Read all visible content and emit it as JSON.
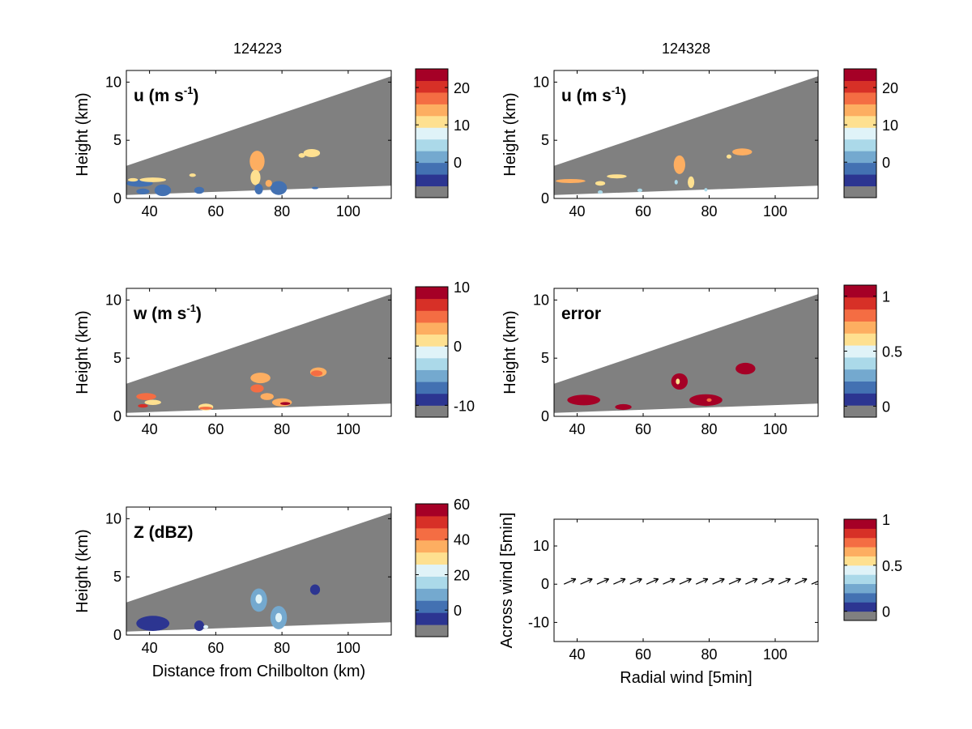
{
  "figure": {
    "col_titles": [
      "124223",
      "124328"
    ]
  },
  "palette": [
    "#808080",
    "#2c3591",
    "#4371b2",
    "#74a9cf",
    "#abd9e9",
    "#e0f3f8",
    "#fee090",
    "#fdae61",
    "#f46d43",
    "#d73027",
    "#a50026"
  ],
  "cross_section_envelope": {
    "x": [
      33,
      113
    ],
    "top_km": [
      2.8,
      10.5
    ],
    "bottom_km": [
      0.3,
      1.1
    ]
  },
  "chart_data": [
    {
      "type": "heatmap",
      "id": "u_124223",
      "title": "124223",
      "label": "u (m s",
      "label_sup": "-1",
      "label_tail": ")",
      "ylabel": "Height (km)",
      "xlabel": "",
      "xlim": [
        33,
        113
      ],
      "ylim": [
        0,
        11
      ],
      "xticks": [
        40,
        60,
        80,
        100
      ],
      "yticks": [
        0,
        5,
        10
      ],
      "colorbar": {
        "ticks": [
          0,
          10,
          20
        ],
        "range": [
          -9.5,
          25
        ]
      },
      "echoes": [
        {
          "x": 37,
          "y": 1.3,
          "w": 8,
          "h": 0.6,
          "v": -5
        },
        {
          "x": 44,
          "y": 0.7,
          "w": 5,
          "h": 1.0,
          "v": -5
        },
        {
          "x": 38,
          "y": 0.6,
          "w": 4,
          "h": 0.5,
          "v": -5
        },
        {
          "x": 41,
          "y": 1.6,
          "w": 8,
          "h": 0.4,
          "v": 9
        },
        {
          "x": 35,
          "y": 1.6,
          "w": 3,
          "h": 0.3,
          "v": 10
        },
        {
          "x": 55,
          "y": 0.7,
          "w": 3,
          "h": 0.6,
          "v": -5
        },
        {
          "x": 53,
          "y": 2.0,
          "w": 2,
          "h": 0.3,
          "v": 9
        },
        {
          "x": 72.5,
          "y": 3.2,
          "w": 4.5,
          "h": 1.8,
          "v": 12
        },
        {
          "x": 72,
          "y": 1.8,
          "w": 3,
          "h": 1.3,
          "v": 11
        },
        {
          "x": 73,
          "y": 0.8,
          "w": 2.5,
          "h": 0.9,
          "v": -5
        },
        {
          "x": 79,
          "y": 0.9,
          "w": 5,
          "h": 1.2,
          "v": -5
        },
        {
          "x": 76,
          "y": 1.3,
          "w": 2,
          "h": 0.6,
          "v": 12
        },
        {
          "x": 89,
          "y": 3.9,
          "w": 5,
          "h": 0.7,
          "v": 10
        },
        {
          "x": 86,
          "y": 3.7,
          "w": 2,
          "h": 0.4,
          "v": 11
        },
        {
          "x": 90,
          "y": 0.9,
          "w": 2,
          "h": 0.2,
          "v": -5
        }
      ]
    },
    {
      "type": "heatmap",
      "id": "u_124328",
      "title": "124328",
      "label": "u (m s",
      "label_sup": "-1",
      "label_tail": ")",
      "ylabel": "Height (km)",
      "xlabel": "",
      "xlim": [
        33,
        113
      ],
      "ylim": [
        0,
        11
      ],
      "xticks": [
        40,
        60,
        80,
        100
      ],
      "yticks": [
        0,
        5,
        10
      ],
      "colorbar": {
        "ticks": [
          0,
          10,
          20
        ],
        "range": [
          -9.5,
          25
        ]
      },
      "echoes": [
        {
          "x": 38,
          "y": 1.5,
          "w": 9,
          "h": 0.35,
          "v": 12
        },
        {
          "x": 47,
          "y": 1.3,
          "w": 3,
          "h": 0.4,
          "v": 11
        },
        {
          "x": 52,
          "y": 1.9,
          "w": 6,
          "h": 0.35,
          "v": 11
        },
        {
          "x": 47,
          "y": 0.55,
          "w": 1.5,
          "h": 0.3,
          "v": 4
        },
        {
          "x": 71,
          "y": 2.9,
          "w": 3.5,
          "h": 1.6,
          "v": 12
        },
        {
          "x": 70,
          "y": 1.4,
          "w": 1,
          "h": 0.4,
          "v": 3
        },
        {
          "x": 74.5,
          "y": 1.4,
          "w": 2,
          "h": 1.0,
          "v": 11
        },
        {
          "x": 90,
          "y": 4.0,
          "w": 6,
          "h": 0.6,
          "v": 12
        },
        {
          "x": 86,
          "y": 3.6,
          "w": 1.5,
          "h": 0.35,
          "v": 9
        },
        {
          "x": 79,
          "y": 0.75,
          "w": 1,
          "h": 0.3,
          "v": 3
        },
        {
          "x": 59,
          "y": 0.7,
          "w": 1.5,
          "h": 0.3,
          "v": 3
        }
      ]
    },
    {
      "type": "heatmap",
      "id": "w_124223",
      "title": "",
      "label": "w (m s",
      "label_sup": "-1",
      "label_tail": ")",
      "ylabel": "Height (km)",
      "xlabel": "",
      "xlim": [
        33,
        113
      ],
      "ylim": [
        0,
        11
      ],
      "xticks": [
        40,
        60,
        80,
        100
      ],
      "yticks": [
        0,
        5,
        10
      ],
      "colorbar": {
        "ticks": [
          -10,
          0,
          10
        ],
        "range": [
          -12,
          10
        ]
      },
      "echoes": [
        {
          "x": 39,
          "y": 1.7,
          "w": 6,
          "h": 0.6,
          "v": 4
        },
        {
          "x": 41,
          "y": 1.2,
          "w": 5,
          "h": 0.45,
          "v": 1
        },
        {
          "x": 38,
          "y": 0.9,
          "w": 3,
          "h": 0.3,
          "v": 6
        },
        {
          "x": 57,
          "y": 0.8,
          "w": 4.5,
          "h": 0.6,
          "v": 1
        },
        {
          "x": 57,
          "y": 0.7,
          "w": 4,
          "h": 0.25,
          "v": 5
        },
        {
          "x": 73.5,
          "y": 3.3,
          "w": 6,
          "h": 0.9,
          "v": 2
        },
        {
          "x": 72.5,
          "y": 2.4,
          "w": 4,
          "h": 0.7,
          "v": 5
        },
        {
          "x": 75.5,
          "y": 1.7,
          "w": 4,
          "h": 0.6,
          "v": 3
        },
        {
          "x": 80,
          "y": 1.2,
          "w": 6,
          "h": 0.7,
          "v": 2
        },
        {
          "x": 81,
          "y": 1.1,
          "w": 3,
          "h": 0.25,
          "v": 9
        },
        {
          "x": 91,
          "y": 3.8,
          "w": 5,
          "h": 0.8,
          "v": 2
        },
        {
          "x": 90.5,
          "y": 3.7,
          "w": 3.5,
          "h": 0.5,
          "v": 5
        }
      ]
    },
    {
      "type": "heatmap",
      "id": "error_124328",
      "title": "",
      "label": "error",
      "label_sup": "",
      "label_tail": "",
      "ylabel": "Height (km)",
      "xlabel": "",
      "xlim": [
        33,
        113
      ],
      "ylim": [
        0,
        11
      ],
      "xticks": [
        40,
        60,
        80,
        100
      ],
      "yticks": [
        0,
        5,
        10
      ],
      "colorbar": {
        "ticks": [
          0,
          0.5,
          1
        ],
        "range": [
          -0.1,
          1.1
        ]
      },
      "echoes": [
        {
          "x": 42,
          "y": 1.4,
          "w": 10,
          "h": 0.9,
          "v": 1.05
        },
        {
          "x": 54,
          "y": 0.8,
          "w": 5,
          "h": 0.5,
          "v": 1.05
        },
        {
          "x": 71,
          "y": 3.0,
          "w": 5,
          "h": 1.4,
          "v": 1.05
        },
        {
          "x": 79,
          "y": 1.4,
          "w": 10,
          "h": 1.0,
          "v": 1.05
        },
        {
          "x": 91,
          "y": 4.1,
          "w": 6,
          "h": 1.0,
          "v": 1.05
        },
        {
          "x": 70.5,
          "y": 3.0,
          "w": 1.2,
          "h": 0.5,
          "v": 0.6
        },
        {
          "x": 80,
          "y": 1.4,
          "w": 1.5,
          "h": 0.3,
          "v": 0.85
        }
      ]
    },
    {
      "type": "heatmap",
      "id": "z_124223",
      "title": "",
      "label": "Z (dBZ)",
      "label_sup": "",
      "label_tail": "",
      "ylabel": "Height (km)",
      "xlabel": "Distance from Chilbolton (km)",
      "xlim": [
        33,
        113
      ],
      "ylim": [
        0,
        11
      ],
      "xticks": [
        40,
        60,
        80,
        100
      ],
      "yticks": [
        0,
        5,
        10
      ],
      "colorbar": {
        "ticks": [
          0,
          20,
          40,
          60
        ],
        "range": [
          -15,
          60
        ]
      },
      "echoes": [
        {
          "x": 41,
          "y": 1.0,
          "w": 10,
          "h": 1.3,
          "v": -8
        },
        {
          "x": 55,
          "y": 0.8,
          "w": 3,
          "h": 0.9,
          "v": -8
        },
        {
          "x": 73,
          "y": 3.0,
          "w": 5,
          "h": 2.0,
          "v": 2
        },
        {
          "x": 73,
          "y": 3.1,
          "w": 2,
          "h": 0.8,
          "v": 20
        },
        {
          "x": 79,
          "y": 1.5,
          "w": 5,
          "h": 2.0,
          "v": 2
        },
        {
          "x": 79,
          "y": 1.5,
          "w": 2,
          "h": 0.8,
          "v": 20
        },
        {
          "x": 90,
          "y": 3.9,
          "w": 3,
          "h": 0.9,
          "v": -8
        },
        {
          "x": 57,
          "y": 0.7,
          "w": 1.5,
          "h": 0.3,
          "v": 20
        }
      ]
    },
    {
      "type": "scatter",
      "id": "wind_vectors",
      "title": "",
      "label": "",
      "ylabel": "Across wind [5min]",
      "xlabel": "Radial wind [5min]",
      "xlim": [
        33,
        113
      ],
      "ylim": [
        -15,
        17
      ],
      "xticks": [
        40,
        60,
        80,
        100
      ],
      "yticks": [
        -10,
        0,
        10
      ],
      "x": [
        36,
        41,
        46,
        51,
        56,
        61,
        66,
        71,
        76,
        81,
        86,
        91,
        96,
        101,
        106,
        111
      ],
      "y": [
        0,
        0,
        0,
        0,
        0,
        0,
        0,
        0,
        0,
        0,
        0,
        0,
        0,
        0,
        0,
        0
      ],
      "u": [
        1,
        1,
        1,
        1,
        1,
        1,
        1,
        1,
        1,
        1,
        1,
        1,
        1,
        1,
        1,
        1
      ],
      "v": [
        0.45,
        0.45,
        0.45,
        0.45,
        0.45,
        0.45,
        0.45,
        0.45,
        0.45,
        0.45,
        0.45,
        0.45,
        0.45,
        0.45,
        0.45,
        0.45
      ],
      "colorbar": {
        "ticks": [
          0,
          0.5,
          1
        ],
        "range": [
          -0.1,
          1.0
        ]
      }
    }
  ]
}
